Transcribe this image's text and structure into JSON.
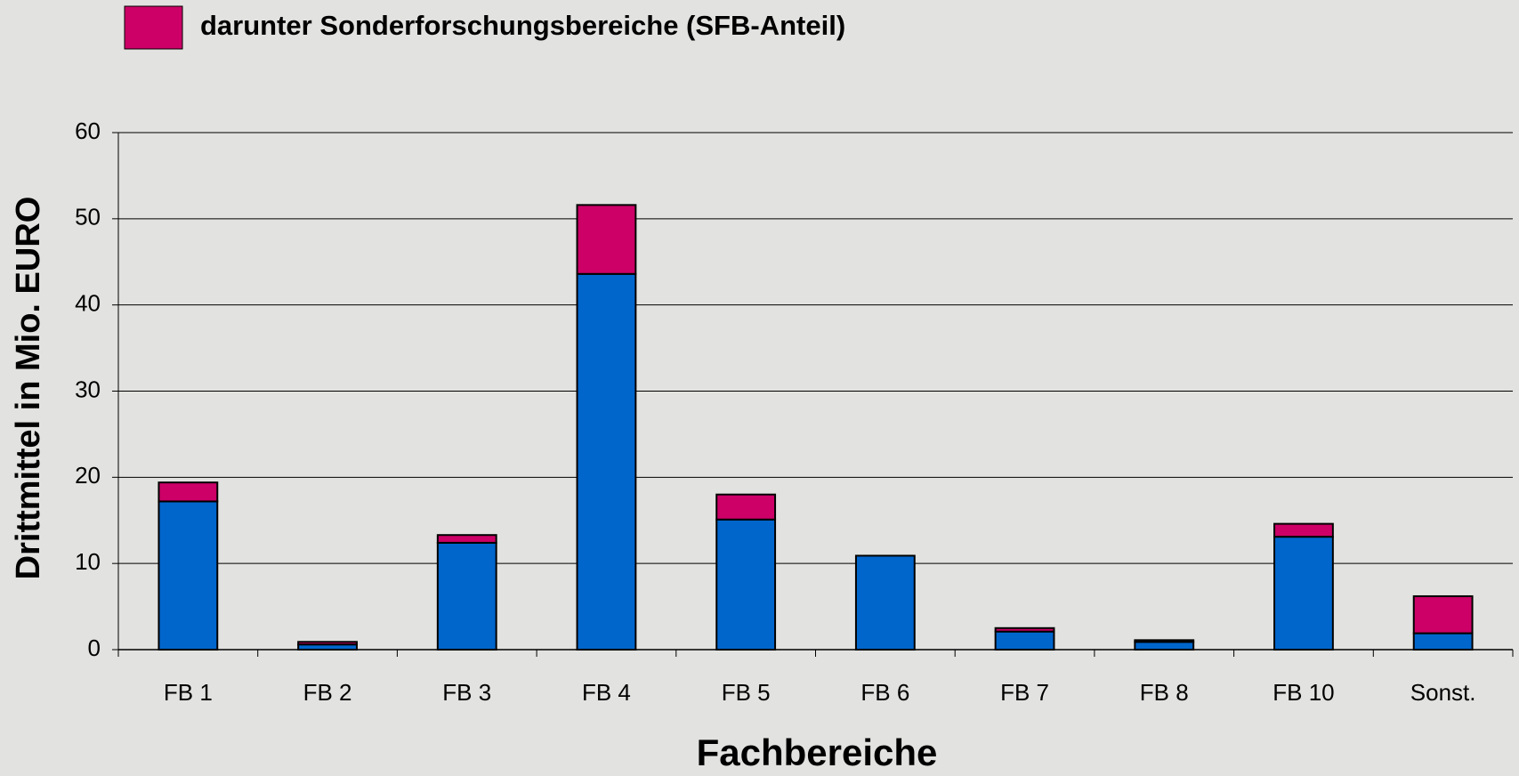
{
  "chart_data": {
    "type": "stacked-bar",
    "y_label": "Drittmittel in Mio. EURO",
    "x_label": "Fachbereiche",
    "categories": [
      "FB 1",
      "FB 2",
      "FB 3",
      "FB 4",
      "FB 5",
      "FB 6",
      "FB 7",
      "FB 8",
      "FB 10",
      "Sonst."
    ],
    "series": [
      {
        "color": "#0066cc",
        "values": [
          17.2,
          0.6,
          12.4,
          43.6,
          15.1,
          10.9,
          2.1,
          0.9,
          13.1,
          1.9
        ]
      },
      {
        "name": "darunter Sonderforschungsbereiche (SFB-Anteil)",
        "color": "#cc0066",
        "values": [
          2.2,
          0.3,
          0.9,
          8.0,
          2.9,
          0,
          0.4,
          0.2,
          1.5,
          4.3
        ]
      }
    ],
    "ylim": [
      0,
      60
    ],
    "yticks": [
      0,
      10,
      20,
      30,
      40,
      50,
      60
    ],
    "grid": true
  }
}
